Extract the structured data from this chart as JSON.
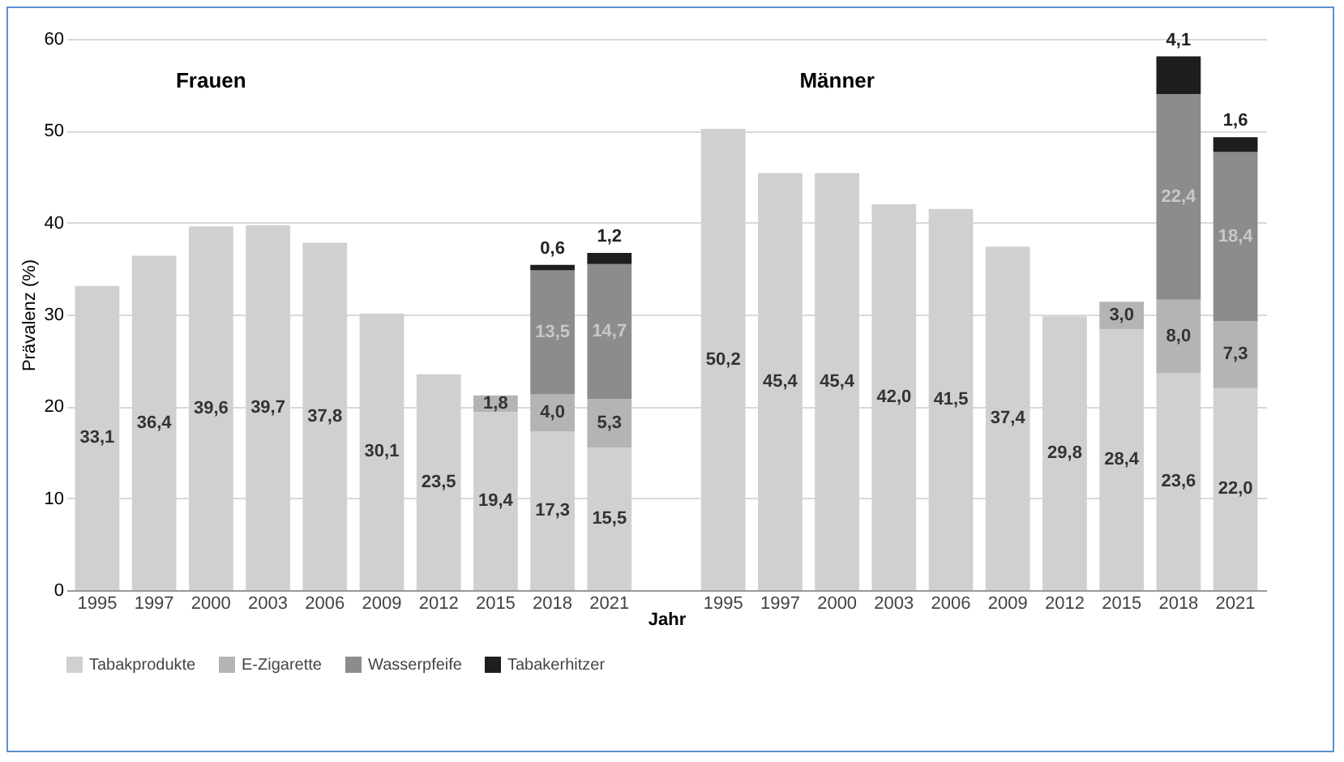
{
  "chart_data": {
    "type": "bar",
    "stacked": true,
    "ylabel": "Prävalenz (%)",
    "xlabel": "Jahr",
    "categories": [
      "1995",
      "1997",
      "2000",
      "2003",
      "2006",
      "2009",
      "2012",
      "2015",
      "2018",
      "2021",
      null,
      "1995",
      "1997",
      "2000",
      "2003",
      "2006",
      "2009",
      "2012",
      "2015",
      "2018",
      "2021"
    ],
    "series": [
      {
        "name": "Tabakprodukte",
        "color": "#d0d0d0",
        "values": [
          33.1,
          36.4,
          39.6,
          39.7,
          37.8,
          30.1,
          23.5,
          19.4,
          17.3,
          15.5,
          null,
          50.2,
          45.4,
          45.4,
          42.0,
          41.5,
          37.4,
          29.8,
          28.4,
          23.6,
          22.0
        ],
        "value_labels": [
          "33,1",
          "36,4",
          "39,6",
          "39,7",
          "37,8",
          "30,1",
          "23,5",
          "19,4",
          "17,3",
          "15,5",
          null,
          "50,2",
          "45,4",
          "45,4",
          "42,0",
          "41,5",
          "37,4",
          "29,8",
          "28,4",
          "23,6",
          "22,0"
        ]
      },
      {
        "name": "E-Zigarette",
        "color": "#b4b4b4",
        "values": [
          null,
          null,
          null,
          null,
          null,
          null,
          null,
          1.8,
          4.0,
          5.3,
          null,
          null,
          null,
          null,
          null,
          null,
          null,
          null,
          3.0,
          8.0,
          7.3
        ],
        "value_labels": [
          null,
          null,
          null,
          null,
          null,
          null,
          null,
          "1,8",
          "4,0",
          "5,3",
          null,
          null,
          null,
          null,
          null,
          null,
          null,
          null,
          "3,0",
          "8,0",
          "7,3"
        ]
      },
      {
        "name": "Wasserpfeife",
        "color": "#8c8c8c",
        "values": [
          null,
          null,
          null,
          null,
          null,
          null,
          null,
          null,
          13.5,
          14.7,
          null,
          null,
          null,
          null,
          null,
          null,
          null,
          null,
          null,
          22.4,
          18.4
        ],
        "value_labels": [
          null,
          null,
          null,
          null,
          null,
          null,
          null,
          null,
          "13,5",
          "14,7",
          null,
          null,
          null,
          null,
          null,
          null,
          null,
          null,
          null,
          "22,4",
          "18,4"
        ]
      },
      {
        "name": "Tabakerhitzer",
        "color": "#1e1e1e",
        "values": [
          null,
          null,
          null,
          null,
          null,
          null,
          null,
          null,
          0.6,
          1.2,
          null,
          null,
          null,
          null,
          null,
          null,
          null,
          null,
          null,
          4.1,
          1.6
        ],
        "value_labels": [
          null,
          null,
          null,
          null,
          null,
          null,
          null,
          null,
          "0,6",
          "1,2",
          null,
          null,
          null,
          null,
          null,
          null,
          null,
          null,
          null,
          "4,1",
          "1,6"
        ]
      }
    ],
    "annotations": [
      "Frauen",
      "Männer"
    ],
    "ylim": [
      0,
      60
    ],
    "yticks": [
      0,
      10,
      20,
      30,
      40,
      50,
      60
    ],
    "grid": "y",
    "legend": "bottom"
  }
}
